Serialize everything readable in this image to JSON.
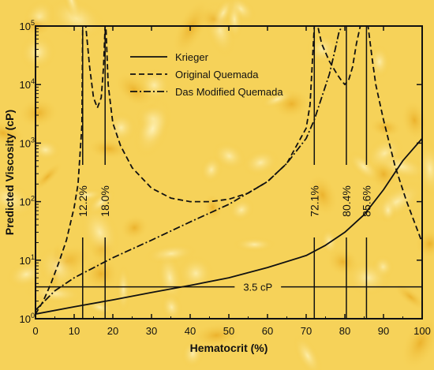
{
  "chart_data": {
    "type": "line",
    "xlabel": "Hematocrit (%)",
    "ylabel": "Predicted Viscosity (cP)",
    "xlim": [
      0,
      100
    ],
    "ylim": [
      1,
      100000
    ],
    "yscale": "log",
    "grid": false,
    "legend_position": "top-center",
    "x_ticks": [
      "0",
      "10",
      "20",
      "30",
      "40",
      "50",
      "60",
      "70",
      "80",
      "90",
      "100"
    ],
    "y_ticks": [
      {
        "value": 1,
        "mantissa": "10",
        "exp": "0"
      },
      {
        "value": 10,
        "mantissa": "10",
        "exp": "1"
      },
      {
        "value": 100,
        "mantissa": "10",
        "exp": "2"
      },
      {
        "value": 1000,
        "mantissa": "10",
        "exp": "3"
      },
      {
        "value": 10000,
        "mantissa": "10",
        "exp": "4"
      },
      {
        "value": 100000,
        "mantissa": "10",
        "exp": "5"
      }
    ],
    "series": [
      {
        "name": "Krieger",
        "style": "solid",
        "x": [
          0,
          10,
          20,
          30,
          40,
          50,
          60,
          70,
          75,
          80,
          85,
          90,
          95,
          100
        ],
        "y": [
          1.2,
          1.6,
          2.1,
          2.8,
          3.7,
          5.0,
          7.5,
          12,
          18,
          30,
          60,
          160,
          500,
          1200
        ]
      },
      {
        "name": "Original Quemada",
        "style": "dashed",
        "x": [
          0,
          2,
          4,
          6,
          8,
          10,
          11,
          12,
          12.2,
          13,
          14,
          15,
          16,
          17,
          17.6,
          18,
          18.2,
          18.8,
          19.5,
          20,
          22,
          25,
          30,
          35,
          40,
          45,
          50,
          55,
          60,
          65,
          70,
          71,
          72.1,
          73,
          74,
          76,
          78,
          79,
          80,
          81,
          82,
          83,
          84,
          85,
          85.6,
          86,
          87,
          88,
          90,
          93,
          96,
          100
        ],
        "y": [
          1.2,
          2,
          4,
          9,
          22,
          80,
          200,
          2000,
          100000,
          100000,
          20000,
          6000,
          4000,
          6000,
          20000,
          100000,
          100000,
          10000,
          4000,
          2200,
          900,
          380,
          170,
          115,
          100,
          100,
          110,
          140,
          220,
          450,
          1800,
          4500,
          100000,
          100000,
          50000,
          25000,
          15000,
          12000,
          10000,
          12000,
          20000,
          50000,
          100000,
          100000,
          100000,
          100000,
          30000,
          10000,
          2500,
          400,
          100,
          20
        ]
      },
      {
        "name": "Das Modified Quemada",
        "style": "dashdot",
        "x": [
          0,
          5,
          10,
          20,
          30,
          40,
          50,
          60,
          65,
          70,
          72.1,
          74,
          76,
          77.5,
          78.5,
          79.3,
          79.7,
          80
        ],
        "y": [
          1.4,
          3,
          5,
          11,
          22,
          45,
          90,
          220,
          450,
          1200,
          2500,
          6000,
          15000,
          40000,
          80000,
          100000,
          100000,
          100000
        ]
      }
    ],
    "vertical_markers": [
      {
        "x": 12.2,
        "label": "12.2%"
      },
      {
        "x": 18.0,
        "label": "18.0%"
      },
      {
        "x": 72.1,
        "label": "72.1%"
      },
      {
        "x": 80.4,
        "label": "80.4%"
      },
      {
        "x": 85.6,
        "label": "85.6%"
      }
    ],
    "horizontal_markers": [
      {
        "y": 3.5,
        "label": "3.5 cP"
      }
    ]
  }
}
